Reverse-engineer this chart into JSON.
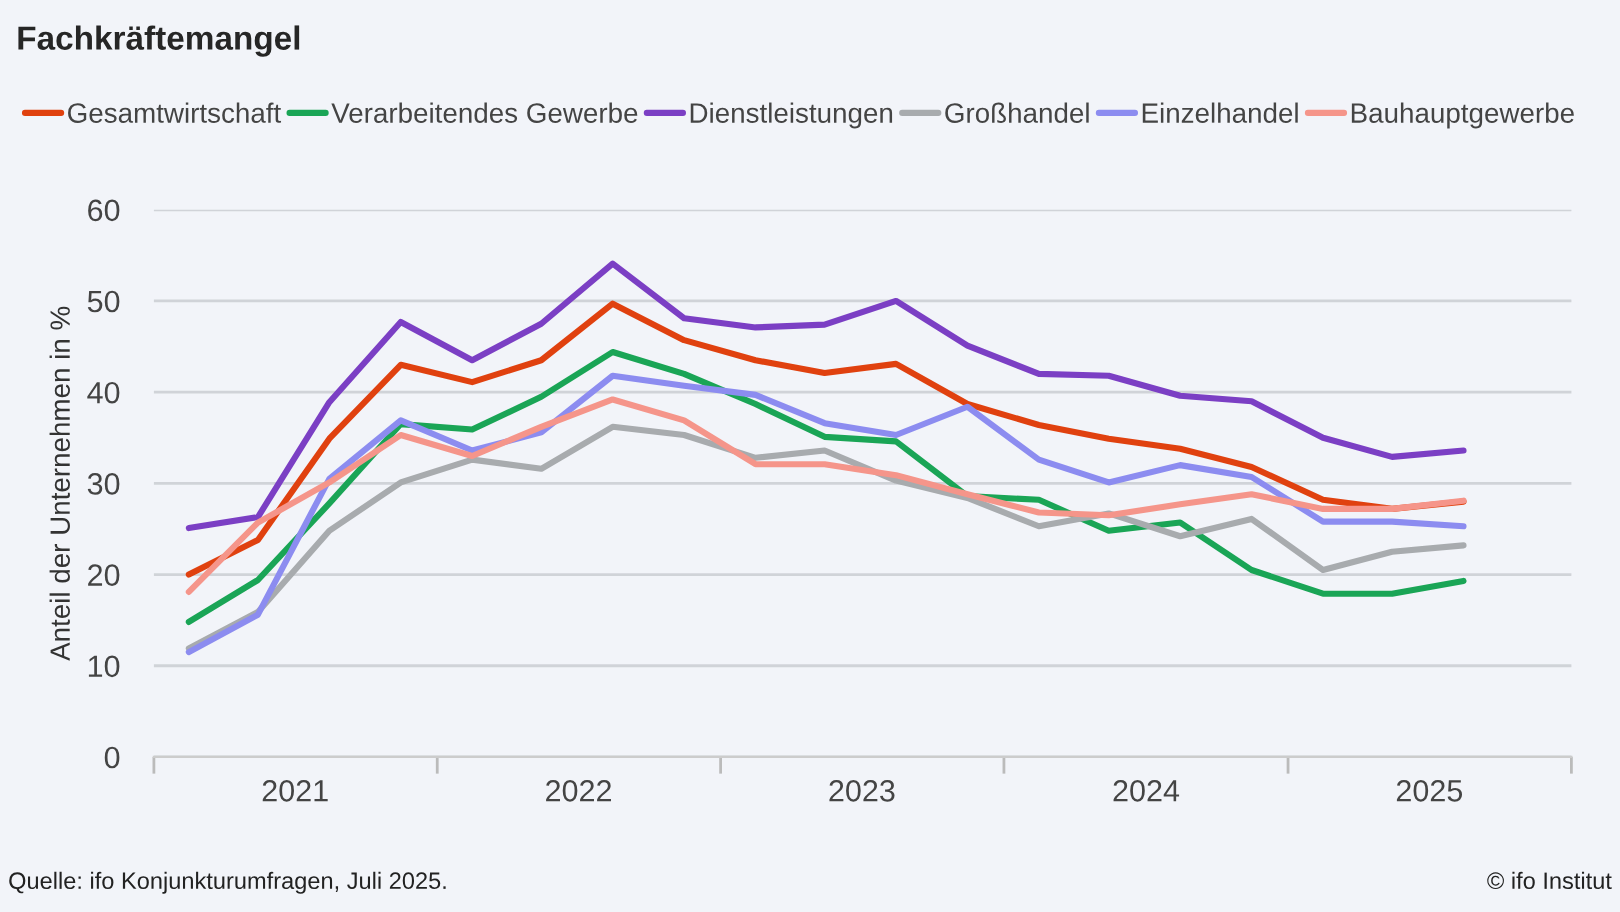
{
  "chart_data": {
    "type": "line",
    "title": "Fachkräftemangel",
    "ylabel": "Anteil der Unternehmen in %",
    "x": [
      "2021-02-15",
      "2021-05-15",
      "2021-08-15",
      "2021-11-15",
      "2022-02-15",
      "2022-05-15",
      "2022-08-15",
      "2022-11-15",
      "2023-02-15",
      "2023-05-15",
      "2023-08-15",
      "2023-11-15",
      "2024-02-15",
      "2024-05-15",
      "2024-08-15",
      "2024-11-15",
      "2025-02-15",
      "2025-05-15",
      "2025-08-15"
    ],
    "series": [
      {
        "name": "Gesamtwirtschaft",
        "color": "#e0410f",
        "values": [
          20.0,
          23.8,
          34.9,
          43.0,
          41.1,
          43.5,
          49.7,
          45.7,
          43.5,
          42.1,
          43.1,
          38.7,
          36.4,
          34.9,
          33.8,
          31.8,
          28.2,
          27.2,
          28.0
        ]
      },
      {
        "name": "Verarbeitendes Gewerbe",
        "color": "#1aa556",
        "values": [
          14.8,
          19.4,
          27.8,
          36.5,
          35.9,
          39.5,
          44.4,
          42.0,
          38.7,
          35.1,
          34.6,
          28.6,
          28.2,
          24.8,
          25.7,
          20.5,
          17.9,
          17.9,
          19.3
        ]
      },
      {
        "name": "Dienstleistungen",
        "color": "#7b3fc4",
        "values": [
          25.1,
          26.3,
          38.9,
          47.7,
          43.5,
          47.5,
          54.1,
          48.1,
          47.1,
          47.4,
          50.0,
          45.1,
          42.0,
          41.8,
          39.6,
          39.0,
          35.0,
          32.9,
          33.6
        ]
      },
      {
        "name": "Großhandel",
        "color": "#a8abae",
        "values": [
          11.9,
          15.9,
          24.8,
          30.1,
          32.6,
          31.6,
          36.2,
          35.3,
          32.8,
          33.6,
          30.3,
          28.4,
          25.3,
          26.7,
          24.2,
          26.1,
          20.5,
          22.5,
          23.2
        ]
      },
      {
        "name": "Einzelhandel",
        "color": "#8c8cf0",
        "values": [
          11.5,
          15.6,
          30.5,
          36.9,
          33.6,
          35.6,
          41.8,
          40.7,
          39.7,
          36.6,
          35.3,
          38.4,
          32.6,
          30.1,
          32.0,
          30.7,
          25.8,
          25.8,
          25.3
        ]
      },
      {
        "name": "Bauhauptgewerbe",
        "color": "#f5958a",
        "values": [
          18.1,
          25.7,
          30.1,
          35.3,
          33.0,
          36.2,
          39.2,
          36.9,
          32.1,
          32.1,
          30.9,
          28.8,
          26.8,
          26.5,
          27.7,
          28.8,
          27.2,
          27.2,
          28.1
        ]
      }
    ],
    "xlim": [
      "2021-01-01",
      "2026-01-01"
    ],
    "xticks": [
      {
        "value": "2021-01-01",
        "label": null
      },
      {
        "value": "2021-07-02",
        "label": "2021"
      },
      {
        "value": "2022-01-01",
        "label": null
      },
      {
        "value": "2022-07-02",
        "label": "2022"
      },
      {
        "value": "2023-01-01",
        "label": null
      },
      {
        "value": "2023-07-02",
        "label": "2023"
      },
      {
        "value": "2024-01-01",
        "label": null
      },
      {
        "value": "2024-07-02",
        "label": "2024"
      },
      {
        "value": "2025-01-01",
        "label": null
      },
      {
        "value": "2025-07-02",
        "label": "2025"
      },
      {
        "value": "2026-01-01",
        "label": null
      }
    ],
    "ylim": [
      0,
      60
    ],
    "yticks": [
      0,
      10,
      20,
      30,
      40,
      50,
      60
    ],
    "grid": "y",
    "legend": "top",
    "marker": "none",
    "line_style": "solid",
    "annotations": [
      "Quelle: ifo Konjunkturumfragen, Juli 2025.",
      "© ifo Institut"
    ]
  }
}
